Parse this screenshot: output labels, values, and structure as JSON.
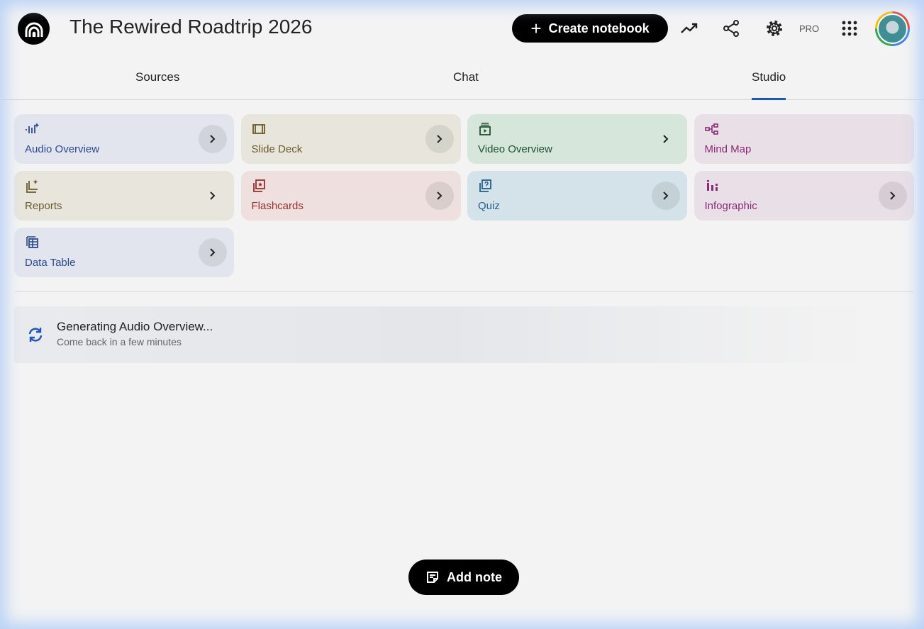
{
  "header": {
    "title": "The Rewired Roadtrip 2026",
    "create_label": "Create notebook",
    "pro_label": "PRO"
  },
  "tabs": [
    {
      "label": "Sources"
    },
    {
      "label": "Chat"
    },
    {
      "label": "Studio",
      "active": true
    }
  ],
  "accent": "#1a56c4",
  "studio_items": [
    {
      "label": "Audio Overview",
      "icon": "audio-waveform-icon",
      "bg": "#e3e5ee",
      "color": "#2b4a8a"
    },
    {
      "label": "Slide Deck",
      "icon": "slides-icon",
      "bg": "#e8e6dc",
      "color": "#6b5a2a"
    },
    {
      "label": "Video Overview",
      "icon": "video-icon",
      "bg": "#d6e6db",
      "color": "#1f5030"
    },
    {
      "label": "Mind Map",
      "icon": "mind-map-icon",
      "bg": "#e9dfe6",
      "color": "#8a2a78"
    },
    {
      "label": "Reports",
      "icon": "reports-icon",
      "bg": "#e8e6dc",
      "color": "#6b5a2a"
    },
    {
      "label": "Flashcards",
      "icon": "flashcards-icon",
      "bg": "#ede0de",
      "color": "#9a2f2f"
    },
    {
      "label": "Quiz",
      "icon": "quiz-icon",
      "bg": "#d4e3ea",
      "color": "#1f5f88"
    },
    {
      "label": "Infographic",
      "icon": "infographic-icon",
      "bg": "#e9dfe6",
      "color": "#8a2a78"
    },
    {
      "label": "Data Table",
      "icon": "table-icon",
      "bg": "#e3e5ee",
      "color": "#2b4a8a"
    }
  ],
  "status": {
    "title": "Generating Audio Overview...",
    "subtitle": "Come back in a few minutes"
  },
  "add_note_label": "Add note"
}
